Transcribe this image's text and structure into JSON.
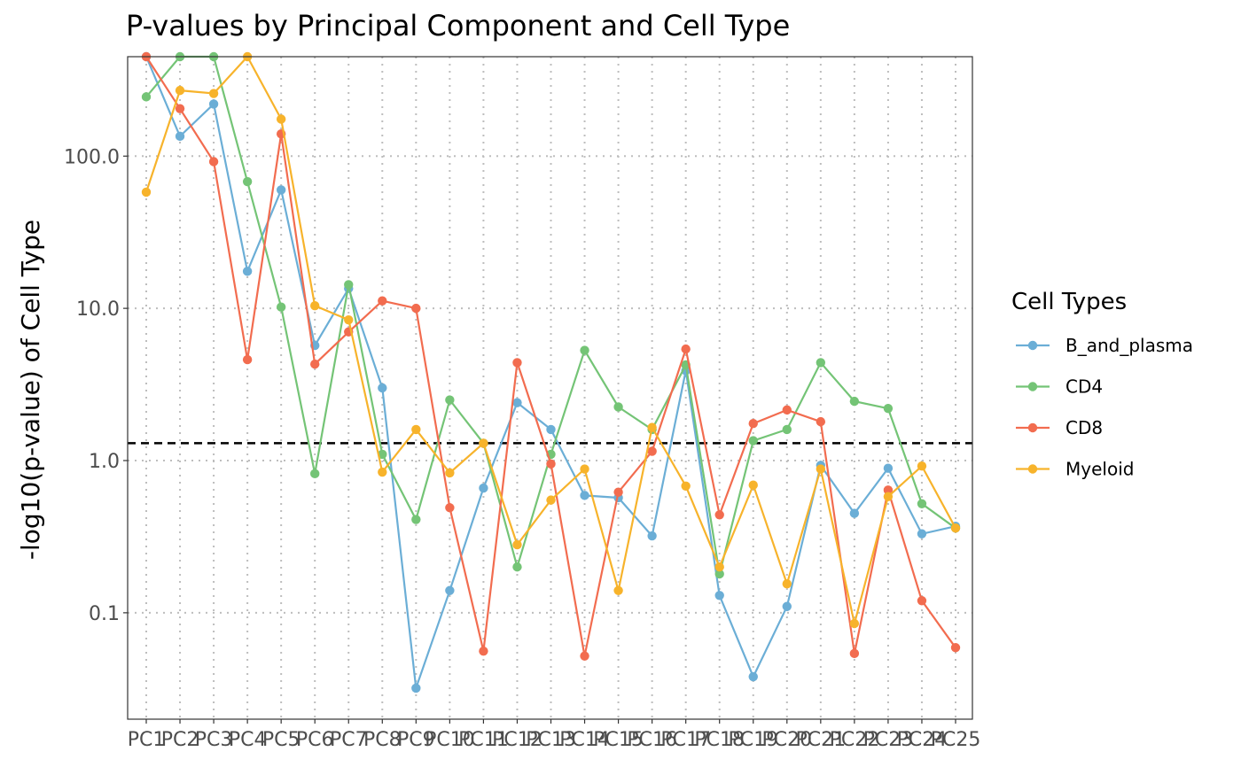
{
  "chart_data": {
    "type": "line",
    "title": "P-values by Principal Component and Cell Type",
    "xlabel": "",
    "ylabel": "-log10(p-value) of Cell Type",
    "y_scale": "log10",
    "ylim": [
      0.02,
      450
    ],
    "y_ticks": [
      0.1,
      1.0,
      10.0,
      100.0
    ],
    "y_tick_labels": [
      "0.1",
      "1.0",
      "10.0",
      "100.0"
    ],
    "grid": "dotted",
    "threshold_line": {
      "value": 1.3,
      "style": "dashed",
      "color": "#000000"
    },
    "categories": [
      "PC1",
      "PC2",
      "PC3",
      "PC4",
      "PC5",
      "PC6",
      "PC7",
      "PC8",
      "PC9",
      "PC10",
      "PC11",
      "PC12",
      "PC13",
      "PC14",
      "PC15",
      "PC16",
      "PC17",
      "PC18",
      "PC19",
      "PC20",
      "PC21",
      "PC22",
      "PC23",
      "PC24",
      "PC25"
    ],
    "legend": {
      "title": "Cell Types",
      "position": "right"
    },
    "series": [
      {
        "name": "B_and_plasma",
        "color": "#6BAED6",
        "values": [
          450,
          135,
          220,
          17.5,
          60,
          5.7,
          13.5,
          3.0,
          0.032,
          0.14,
          0.66,
          2.4,
          1.6,
          0.59,
          0.57,
          0.32,
          3.9,
          0.13,
          0.038,
          0.11,
          0.93,
          0.45,
          0.89,
          0.33,
          0.37
        ]
      },
      {
        "name": "CD4",
        "color": "#74C476",
        "values": [
          245,
          450,
          450,
          68,
          10.2,
          0.82,
          14.3,
          1.1,
          0.41,
          2.5,
          1.3,
          0.2,
          1.1,
          5.3,
          2.25,
          1.6,
          4.25,
          0.18,
          1.35,
          1.6,
          4.4,
          2.45,
          2.2,
          0.52,
          0.36
        ]
      },
      {
        "name": "CD8",
        "color": "#F26C4F",
        "values": [
          450,
          205,
          92,
          4.6,
          140,
          4.3,
          7.0,
          11.2,
          10.0,
          0.49,
          0.056,
          4.4,
          0.95,
          0.052,
          0.62,
          1.15,
          5.4,
          0.44,
          1.75,
          2.15,
          1.8,
          0.054,
          0.64,
          0.12,
          0.059
        ]
      },
      {
        "name": "Myeloid",
        "color": "#F7B32B",
        "values": [
          58,
          270,
          258,
          450,
          175,
          10.4,
          8.4,
          0.84,
          1.6,
          0.83,
          1.3,
          0.28,
          0.55,
          0.88,
          0.14,
          1.65,
          0.68,
          0.2,
          0.69,
          0.155,
          0.88,
          0.085,
          0.58,
          0.92,
          0.36
        ]
      }
    ]
  }
}
